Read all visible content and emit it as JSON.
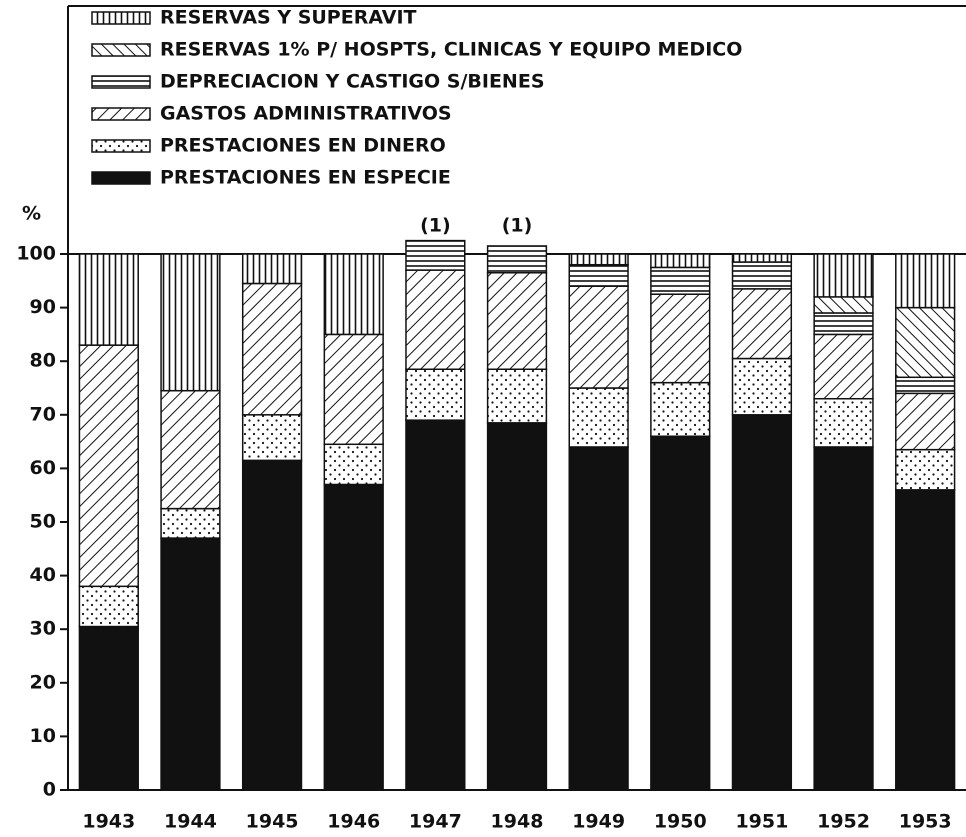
{
  "chart_data": {
    "type": "stacked-bar",
    "y_label": "%",
    "categories": [
      "1943",
      "1944",
      "1945",
      "1946",
      "1947",
      "1948",
      "1949",
      "1950",
      "1951",
      "1952",
      "1953"
    ],
    "series": [
      {
        "name": "PRESTACIONES EN ESPECIE",
        "color": "#111111",
        "pattern": "solid",
        "values": [
          30.5,
          47,
          61.5,
          57,
          69,
          68.5,
          64,
          66,
          70,
          64,
          56
        ]
      },
      {
        "name": "PRESTACIONES EN DINERO",
        "color": "#111111",
        "pattern": "dots",
        "values": [
          7.5,
          5.5,
          8.5,
          7.5,
          9.5,
          10,
          11,
          10,
          10.5,
          9,
          7.5
        ]
      },
      {
        "name": "GASTOS ADMINISTRATIVOS",
        "color": "#111111",
        "pattern": "diagonal-down",
        "values": [
          45,
          22,
          24.5,
          20.5,
          18.5,
          18,
          19,
          16.5,
          13,
          12,
          10.5
        ]
      },
      {
        "name": "DEPRECIACION Y CASTIGO S/BIENES",
        "color": "#111111",
        "pattern": "horizontal",
        "values": [
          0,
          0,
          0,
          0,
          5.5,
          5,
          4,
          5,
          5,
          4,
          3
        ]
      },
      {
        "name": "RESERVAS 1% P/ HOSPTS, CLINICAS Y EQUIPO MEDICO",
        "color": "#111111",
        "pattern": "diagonal-up",
        "values": [
          0,
          0,
          0,
          0,
          0,
          0,
          0,
          0,
          0,
          3,
          13
        ]
      },
      {
        "name": "RESERVAS Y SUPERAVIT",
        "color": "#111111",
        "pattern": "vertical",
        "values": [
          17,
          25.5,
          5.5,
          15,
          0,
          0,
          2,
          2.5,
          1.5,
          8,
          10
        ]
      }
    ],
    "annotations": [
      {
        "category": 4,
        "text": "(1)"
      },
      {
        "category": 5,
        "text": "(1)"
      }
    ],
    "ylim": [
      0,
      100
    ],
    "yticks": [
      0,
      10,
      20,
      30,
      40,
      50,
      60,
      70,
      80,
      90,
      100
    ]
  }
}
